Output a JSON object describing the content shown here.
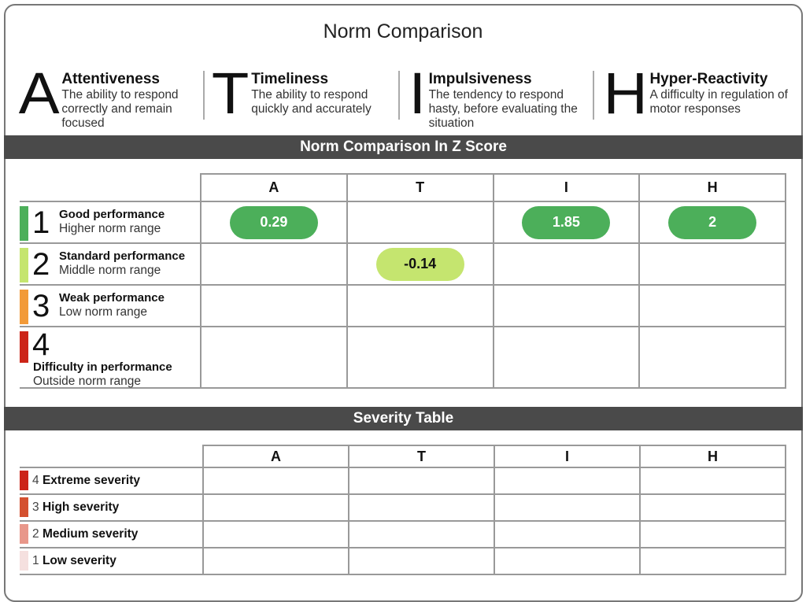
{
  "title": "Norm Comparison",
  "legend": [
    {
      "letter": "A",
      "name": "Attentiveness",
      "desc": "The ability to respond correctly and remain focused"
    },
    {
      "letter": "T",
      "name": "Timeliness",
      "desc": "The ability to respond quickly and accurately"
    },
    {
      "letter": "I",
      "name": "Impulsiveness",
      "desc": "The tendency to respond hasty, before evaluating the situation"
    },
    {
      "letter": "H",
      "name": "Hyper-Reactivity",
      "desc": "A difficulty in regulation of motor responses"
    }
  ],
  "norm": {
    "title": "Norm Comparison In Z Score",
    "columns": [
      "A",
      "T",
      "I",
      "H"
    ],
    "rows": [
      {
        "num": "1",
        "title": "Good performance",
        "sub": "Higher norm range",
        "color": "#4caf5a",
        "values": [
          "0.29",
          "",
          "1.85",
          "2"
        ]
      },
      {
        "num": "2",
        "title": "Standard performance",
        "sub": "Middle norm range",
        "color": "#c5e56f",
        "values": [
          "",
          "-0.14",
          "",
          ""
        ]
      },
      {
        "num": "3",
        "title": "Weak performance",
        "sub": "Low norm range",
        "color": "#f29a38",
        "values": [
          "",
          "",
          "",
          ""
        ]
      },
      {
        "num": "4",
        "title": "Difficulty in performance",
        "sub": "Outside norm range",
        "color": "#cc2418",
        "values": [
          "",
          "",
          "",
          ""
        ]
      }
    ]
  },
  "severity": {
    "title": "Severity Table",
    "columns": [
      "A",
      "T",
      "I",
      "H"
    ],
    "rows": [
      {
        "num": "4",
        "label": "Extreme severity",
        "color": "#cc2418"
      },
      {
        "num": "3",
        "label": "High severity",
        "color": "#d4502f"
      },
      {
        "num": "2",
        "label": "Medium severity",
        "color": "#e8978a"
      },
      {
        "num": "1",
        "label": "Low severity",
        "color": "#f5e0df"
      }
    ]
  }
}
